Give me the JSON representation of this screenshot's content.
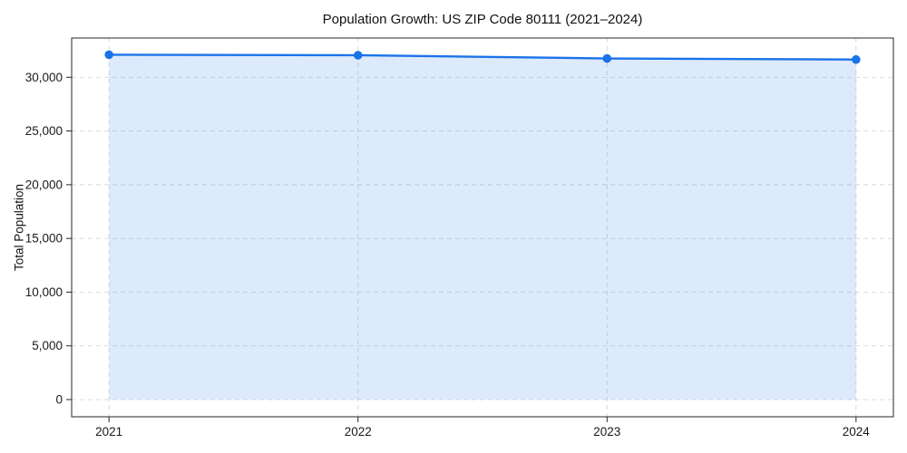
{
  "chart_data": {
    "type": "line",
    "title": "Population Growth: US ZIP Code 80111 (2021–2024)",
    "xlabel": "",
    "ylabel": "Total Population",
    "x": [
      2021,
      2022,
      2023,
      2024
    ],
    "series": [
      {
        "name": "Total Population",
        "values": [
          32100,
          32050,
          31750,
          31650
        ]
      }
    ],
    "xticks": [
      2021,
      2022,
      2023,
      2024
    ],
    "yticks": [
      0,
      5000,
      10000,
      15000,
      20000,
      25000,
      30000
    ],
    "ytick_labels": [
      "0",
      "5,000",
      "10,000",
      "15,000",
      "20,000",
      "25,000",
      "30,000"
    ],
    "xlim": [
      2020.85,
      2024.15
    ],
    "ylim": [
      -1600,
      33650
    ],
    "grid": true,
    "grid_style": "dashed",
    "legend_position": "none",
    "marker": "circle",
    "area_fill": true,
    "area_baseline": 0,
    "colors": {
      "line": "#1a73e8",
      "marker": "#1a73e8",
      "fill": "#1a73e8",
      "fill_opacity": 0.15,
      "grid": "#d7d7d7",
      "spine": "#262626",
      "text": "#1a1a1a",
      "background": "#ffffff"
    }
  }
}
